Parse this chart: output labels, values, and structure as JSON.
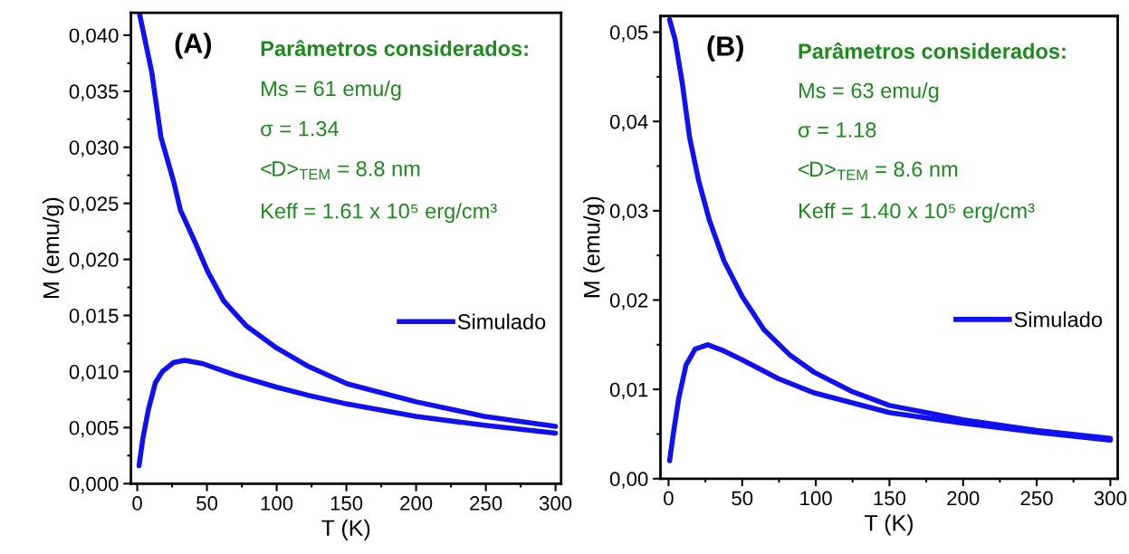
{
  "chart_data": [
    {
      "type": "line",
      "xlabel": "T (K)",
      "ylabel": "M (emu/g)",
      "xlim": [
        -4.5,
        304
      ],
      "xticks": [
        0,
        50,
        100,
        150,
        200,
        250,
        300
      ],
      "ylim": [
        0,
        0.042
      ],
      "yticks": [
        {
          "value": 0,
          "label": "0,000"
        },
        {
          "value": 0.005,
          "label": "0,005"
        },
        {
          "value": 0.01,
          "label": "0,010"
        },
        {
          "value": 0.015,
          "label": "0,015"
        },
        {
          "value": 0.02,
          "label": "0,020"
        },
        {
          "value": 0.025,
          "label": "0,025"
        },
        {
          "value": 0.03,
          "label": "0,030"
        },
        {
          "value": 0.035,
          "label": "0,035"
        },
        {
          "value": 0.04,
          "label": "0,040"
        }
      ],
      "legend": "right",
      "grid": false,
      "annotations": [
        "(A)",
        "Parâmetros considerados:",
        "Ms = 61 emu/g",
        "σ = 1.34",
        "<D>$_{TEM}$ = 8.8 nm",
        "Keff = 1.61 x 10⁵ erg/cm³"
      ],
      "series": [
        {
          "name": "Simulado",
          "color": "#1010f0",
          "x": [
            1.5,
            10.4,
            17,
            26,
            31,
            41.6,
            50.6,
            62,
            78,
            100,
            122,
            150.6,
            200,
            249,
            300
          ],
          "values": [
            0.042,
            0.0367,
            0.0309,
            0.027,
            0.0244,
            0.0215,
            0.0189,
            0.0163,
            0.0141,
            0.0121,
            0.0105,
            0.0089,
            0.0073,
            0.006,
            0.0051
          ]
        },
        {
          "color": "#1010f0",
          "x": [
            1.3,
            4,
            8,
            13,
            18,
            26,
            34,
            47,
            70,
            100,
            122,
            150.6,
            200,
            249,
            300
          ],
          "values": [
            0.0016,
            0.004,
            0.0066,
            0.009,
            0.01,
            0.0108,
            0.011,
            0.0107,
            0.0097,
            0.0086,
            0.0079,
            0.0071,
            0.006,
            0.0052,
            0.0045
          ]
        }
      ]
    },
    {
      "type": "line",
      "xlabel": "T (K)",
      "ylabel": "M (emu/g)",
      "xlim": [
        -5.5,
        305
      ],
      "xticks": [
        0,
        50,
        100,
        150,
        200,
        250,
        300
      ],
      "ylim": [
        0,
        0.0518
      ],
      "yticks": [
        {
          "value": 0,
          "label": "0,00"
        },
        {
          "value": 0.01,
          "label": "0,01"
        },
        {
          "value": 0.02,
          "label": "0,02"
        },
        {
          "value": 0.03,
          "label": "0,03"
        },
        {
          "value": 0.04,
          "label": "0,04"
        },
        {
          "value": 0.05,
          "label": "0,05"
        }
      ],
      "legend": "right",
      "grid": false,
      "annotations": [
        "(B)",
        "Parâmetros considerados:",
        "Ms = 63 emu/g",
        "σ = 1.18",
        "<D>$_{TEM}$ = 8.6 nm",
        "Keff = 1.40 x 10⁵ erg/cm³"
      ],
      "series": [
        {
          "name": "Simulado",
          "color": "#1010f0",
          "x": [
            0.7,
            4.4,
            9.3,
            14.3,
            20.4,
            27.8,
            37.6,
            50,
            64.7,
            82,
            99,
            124,
            150,
            200,
            250,
            300
          ],
          "values": [
            0.0514,
            0.0492,
            0.0443,
            0.0382,
            0.0334,
            0.0289,
            0.0244,
            0.0204,
            0.0167,
            0.0139,
            0.0119,
            0.0098,
            0.0082,
            0.0066,
            0.0054,
            0.0045
          ]
        },
        {
          "color": "#1010f0",
          "x": [
            0.7,
            3.2,
            6.9,
            11.8,
            18,
            26.6,
            37.6,
            50,
            74.5,
            99,
            150,
            200,
            250,
            300
          ],
          "values": [
            0.002,
            0.005,
            0.009,
            0.0127,
            0.0145,
            0.015,
            0.0143,
            0.0133,
            0.0112,
            0.0096,
            0.0074,
            0.0062,
            0.0052,
            0.0043
          ]
        }
      ]
    }
  ]
}
